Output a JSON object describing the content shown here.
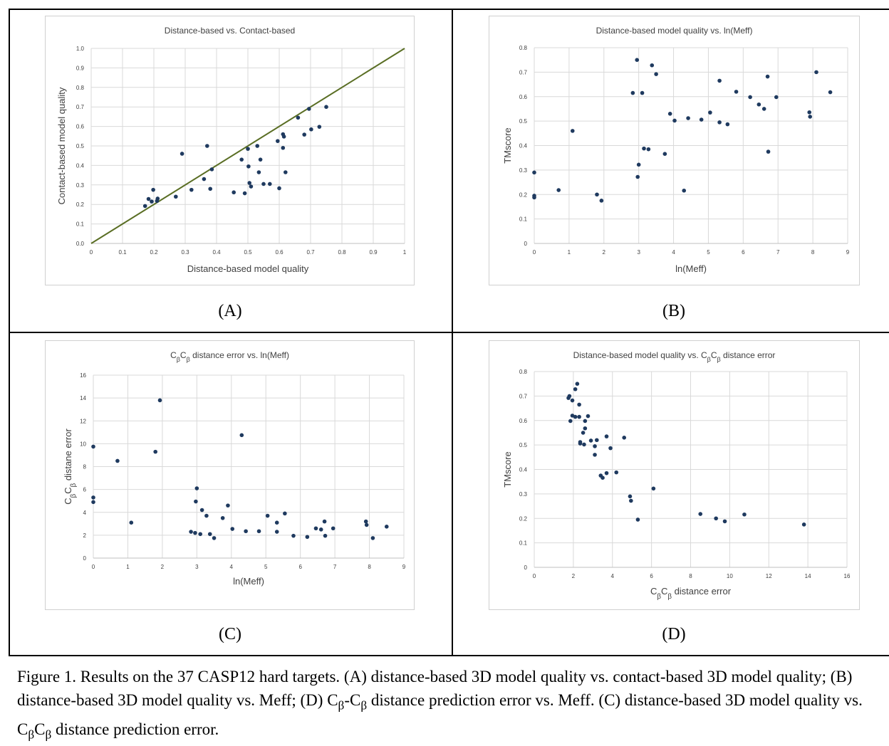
{
  "caption": {
    "prefix": "Figure 1. Results on the 37 CASP12 hard targets. (A) distance-based 3D model quality vs. contact-based 3D model quality; (B) distance-based 3D model quality vs. Meff; (D) C",
    "sub1": "β",
    "mid1": "-C",
    "sub2": "β",
    "mid2": " distance prediction error vs. Meff. (C) distance-based 3D model quality vs. C",
    "sub3": "β",
    "mid3": "C",
    "sub4": "β",
    "suffix": " distance prediction error."
  },
  "chart_data": [
    {
      "panel_label": "(A)",
      "type": "scatter",
      "title": "Distance-based vs. Contact-based",
      "xlabel": "Distance-based model quality",
      "ylabel": "Contact-based model quality",
      "xlim": [
        0,
        1
      ],
      "ylim": [
        0,
        1
      ],
      "xticks": [
        "0",
        "0.1",
        "0.2",
        "0.3",
        "0.4",
        "0.5",
        "0.6",
        "0.7",
        "0.8",
        "0.9",
        "1"
      ],
      "yticks": [
        "0.0",
        "0.1",
        "0.2",
        "0.3",
        "0.4",
        "0.5",
        "0.6",
        "0.7",
        "0.8",
        "0.9",
        "1.0"
      ],
      "grid": true,
      "reference_line": {
        "from": [
          0,
          0
        ],
        "to": [
          1,
          1
        ],
        "color": "#5a6e24"
      },
      "point_color": "#1f3a5f",
      "points": [
        [
          0.172,
          0.192
        ],
        [
          0.183,
          0.228
        ],
        [
          0.193,
          0.215
        ],
        [
          0.198,
          0.275
        ],
        [
          0.21,
          0.218
        ],
        [
          0.212,
          0.23
        ],
        [
          0.27,
          0.24
        ],
        [
          0.29,
          0.46
        ],
        [
          0.32,
          0.275
        ],
        [
          0.36,
          0.33
        ],
        [
          0.37,
          0.5
        ],
        [
          0.38,
          0.28
        ],
        [
          0.385,
          0.38
        ],
        [
          0.455,
          0.262
        ],
        [
          0.48,
          0.43
        ],
        [
          0.49,
          0.257
        ],
        [
          0.5,
          0.485
        ],
        [
          0.502,
          0.395
        ],
        [
          0.505,
          0.31
        ],
        [
          0.51,
          0.292
        ],
        [
          0.53,
          0.5
        ],
        [
          0.535,
          0.365
        ],
        [
          0.54,
          0.43
        ],
        [
          0.55,
          0.305
        ],
        [
          0.57,
          0.305
        ],
        [
          0.6,
          0.283
        ],
        [
          0.595,
          0.525
        ],
        [
          0.612,
          0.49
        ],
        [
          0.612,
          0.56
        ],
        [
          0.615,
          0.548
        ],
        [
          0.62,
          0.365
        ],
        [
          0.66,
          0.645
        ],
        [
          0.68,
          0.558
        ],
        [
          0.695,
          0.69
        ],
        [
          0.702,
          0.585
        ],
        [
          0.728,
          0.598
        ],
        [
          0.75,
          0.7
        ]
      ]
    },
    {
      "panel_label": "(B)",
      "type": "scatter",
      "title": "Distance-based model quality vs. ln(Meff)",
      "xlabel": "ln(Meff)",
      "ylabel": "TMscore",
      "xlim": [
        0,
        9
      ],
      "ylim": [
        0,
        0.8
      ],
      "xticks": [
        "0",
        "1",
        "2",
        "3",
        "4",
        "5",
        "6",
        "7",
        "8",
        "9"
      ],
      "yticks": [
        "0",
        "0.1",
        "0.2",
        "0.3",
        "0.4",
        "0.5",
        "0.6",
        "0.7",
        "0.8"
      ],
      "grid": true,
      "point_color": "#1f3a5f",
      "points": [
        [
          0.0,
          0.29
        ],
        [
          0.0,
          0.195
        ],
        [
          0.0,
          0.188
        ],
        [
          0.7,
          0.218
        ],
        [
          1.1,
          0.46
        ],
        [
          1.8,
          0.2
        ],
        [
          1.93,
          0.175
        ],
        [
          2.83,
          0.615
        ],
        [
          2.95,
          0.75
        ],
        [
          2.97,
          0.272
        ],
        [
          3.0,
          0.322
        ],
        [
          3.1,
          0.615
        ],
        [
          3.15,
          0.388
        ],
        [
          3.28,
          0.385
        ],
        [
          3.38,
          0.728
        ],
        [
          3.5,
          0.692
        ],
        [
          3.75,
          0.366
        ],
        [
          3.9,
          0.53
        ],
        [
          4.03,
          0.502
        ],
        [
          4.3,
          0.216
        ],
        [
          4.42,
          0.512
        ],
        [
          4.8,
          0.506
        ],
        [
          5.05,
          0.535
        ],
        [
          5.32,
          0.495
        ],
        [
          5.32,
          0.665
        ],
        [
          5.55,
          0.487
        ],
        [
          5.8,
          0.62
        ],
        [
          6.2,
          0.598
        ],
        [
          6.45,
          0.568
        ],
        [
          6.6,
          0.55
        ],
        [
          6.7,
          0.682
        ],
        [
          6.72,
          0.375
        ],
        [
          6.95,
          0.598
        ],
        [
          7.9,
          0.536
        ],
        [
          7.92,
          0.518
        ],
        [
          8.1,
          0.7
        ],
        [
          8.5,
          0.618
        ]
      ]
    },
    {
      "panel_label": "(C)",
      "type": "scatter",
      "title": "CβCβ distance error vs. ln(Meff)",
      "xlabel": "ln(Meff)",
      "ylabel": "CβCβ distane error",
      "xlim": [
        0,
        9
      ],
      "ylim": [
        0,
        16
      ],
      "xticks": [
        "0",
        "1",
        "2",
        "3",
        "4",
        "5",
        "6",
        "7",
        "8",
        "9"
      ],
      "yticks": [
        "0",
        "2",
        "4",
        "6",
        "8",
        "10",
        "12",
        "14",
        "16"
      ],
      "grid": true,
      "point_color": "#1f3a5f",
      "points": [
        [
          0.0,
          9.75
        ],
        [
          0.0,
          5.3
        ],
        [
          0.0,
          4.9
        ],
        [
          0.7,
          8.5
        ],
        [
          1.1,
          3.1
        ],
        [
          1.8,
          9.3
        ],
        [
          1.93,
          13.8
        ],
        [
          2.83,
          2.3
        ],
        [
          2.95,
          2.2
        ],
        [
          2.97,
          4.95
        ],
        [
          3.0,
          6.1
        ],
        [
          3.1,
          2.1
        ],
        [
          3.15,
          4.2
        ],
        [
          3.28,
          3.7
        ],
        [
          3.38,
          2.1
        ],
        [
          3.5,
          1.75
        ],
        [
          3.75,
          3.5
        ],
        [
          3.9,
          4.6
        ],
        [
          4.03,
          2.55
        ],
        [
          4.3,
          10.75
        ],
        [
          4.42,
          2.35
        ],
        [
          4.8,
          2.35
        ],
        [
          5.05,
          3.7
        ],
        [
          5.32,
          3.1
        ],
        [
          5.32,
          2.3
        ],
        [
          5.55,
          3.9
        ],
        [
          5.8,
          1.95
        ],
        [
          6.2,
          1.85
        ],
        [
          6.45,
          2.6
        ],
        [
          6.6,
          2.5
        ],
        [
          6.7,
          3.2
        ],
        [
          6.72,
          1.95
        ],
        [
          6.95,
          2.6
        ],
        [
          7.9,
          3.2
        ],
        [
          7.92,
          2.9
        ],
        [
          8.1,
          1.75
        ],
        [
          8.5,
          2.75
        ]
      ]
    },
    {
      "panel_label": "(D)",
      "type": "scatter",
      "title": "Distance-based model quality vs. CβCβ distance error",
      "xlabel": "CβCβ distance error",
      "ylabel": "TMscore",
      "xlim": [
        0,
        16
      ],
      "ylim": [
        0,
        0.8
      ],
      "xticks": [
        "0",
        "2",
        "4",
        "6",
        "8",
        "10",
        "12",
        "14",
        "16"
      ],
      "yticks": [
        "0",
        "0.1",
        "0.2",
        "0.3",
        "0.4",
        "0.5",
        "0.6",
        "0.7",
        "0.8"
      ],
      "grid": true,
      "point_color": "#1f3a5f",
      "points": [
        [
          9.75,
          0.188
        ],
        [
          5.3,
          0.195
        ],
        [
          4.9,
          0.29
        ],
        [
          8.5,
          0.218
        ],
        [
          3.1,
          0.46
        ],
        [
          9.3,
          0.2
        ],
        [
          13.8,
          0.175
        ],
        [
          2.3,
          0.615
        ],
        [
          2.2,
          0.75
        ],
        [
          4.95,
          0.272
        ],
        [
          6.1,
          0.322
        ],
        [
          2.1,
          0.615
        ],
        [
          4.2,
          0.388
        ],
        [
          3.7,
          0.385
        ],
        [
          2.1,
          0.728
        ],
        [
          1.75,
          0.692
        ],
        [
          3.5,
          0.366
        ],
        [
          4.6,
          0.53
        ],
        [
          2.55,
          0.502
        ],
        [
          10.75,
          0.216
        ],
        [
          2.35,
          0.512
        ],
        [
          2.35,
          0.506
        ],
        [
          3.7,
          0.535
        ],
        [
          3.1,
          0.495
        ],
        [
          2.3,
          0.665
        ],
        [
          3.9,
          0.487
        ],
        [
          1.95,
          0.62
        ],
        [
          1.85,
          0.598
        ],
        [
          2.6,
          0.568
        ],
        [
          2.5,
          0.55
        ],
        [
          3.2,
          0.52
        ],
        [
          1.95,
          0.682
        ],
        [
          2.6,
          0.598
        ],
        [
          1.8,
          0.7
        ],
        [
          2.9,
          0.518
        ],
        [
          2.75,
          0.618
        ],
        [
          3.4,
          0.375
        ]
      ]
    }
  ]
}
